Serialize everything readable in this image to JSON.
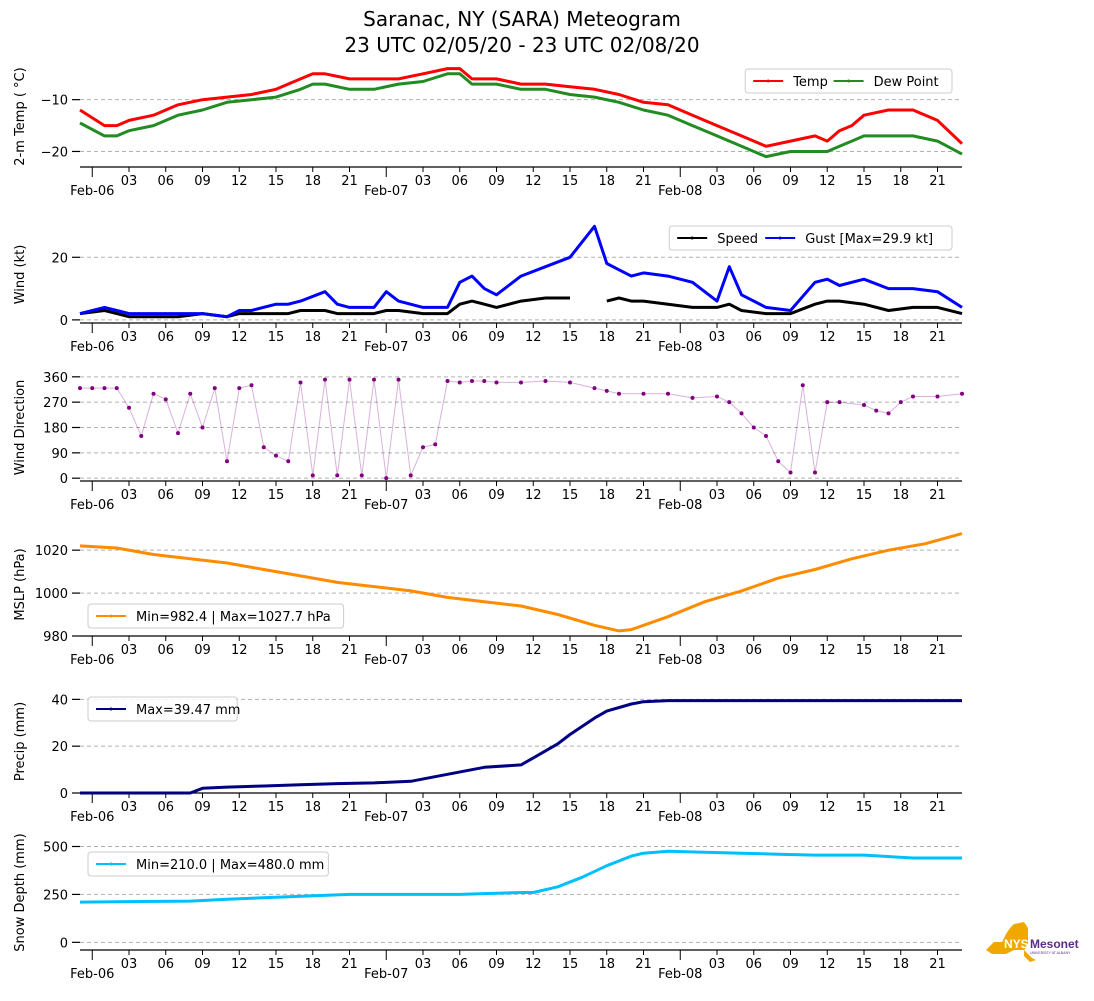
{
  "title": {
    "line1": "Saranac, NY (SARA) Meteogram",
    "line2": "23 UTC 02/05/20 - 23 UTC 02/08/20"
  },
  "logo": {
    "text_main": "NYS",
    "text_brand": "Mesonet",
    "text_sub": "UNIVERSITY AT ALBANY",
    "color_state": "#f0a800",
    "color_brand": "#5b2d86"
  },
  "chart_data": [
    {
      "id": "temp",
      "type": "line",
      "ylabel": "2-m Temp ($^\\circ$C)",
      "ylabel_display": "2-m Temp ( °C)",
      "ylim": [
        -23,
        -3.5
      ],
      "yticks": [
        -10,
        -20
      ],
      "ytick_labels": [
        "−10",
        "−20"
      ],
      "grid": true,
      "legend_placement": "top-right",
      "legend_ncol": 2,
      "x_hours": [
        0,
        2,
        3,
        4,
        6,
        8,
        10,
        12,
        14,
        16,
        18,
        19,
        20,
        22,
        24,
        26,
        28,
        30,
        31,
        32,
        34,
        36,
        38,
        40,
        42,
        44,
        46,
        48,
        50,
        52,
        54,
        56,
        58,
        60,
        61,
        62,
        63,
        64,
        66,
        68,
        70,
        72
      ],
      "series": [
        {
          "name": "Temp",
          "color": "#ff0000",
          "values": [
            -12,
            -15,
            -15,
            -14,
            -13,
            -11,
            -10,
            -9.5,
            -9,
            -8,
            -6,
            -5,
            -5,
            -6,
            -6,
            -6,
            -5,
            -4,
            -4,
            -6,
            -6,
            -7,
            -7,
            -7.5,
            -8,
            -9,
            -10.5,
            -11,
            -13,
            -15,
            -17,
            -19,
            -18,
            -17,
            -18,
            -16,
            -15,
            -13,
            -12,
            -12,
            -14,
            -18.5
          ]
        },
        {
          "name": "Dew Point",
          "color": "#228b22",
          "values": [
            -14.5,
            -17,
            -17,
            -16,
            -15,
            -13,
            -12,
            -10.5,
            -10,
            -9.5,
            -8,
            -7,
            -7,
            -8,
            -8,
            -7,
            -6.5,
            -5,
            -5,
            -7,
            -7,
            -8,
            -8,
            -9,
            -9.5,
            -10.5,
            -12,
            -13,
            -15,
            -17,
            -19,
            -21,
            -20,
            -20,
            -20,
            -19,
            -18,
            -17,
            -17,
            -17,
            -18,
            -20.5
          ]
        }
      ],
      "xtick_labels": [
        "Feb-06",
        "03",
        "06",
        "09",
        "12",
        "15",
        "18",
        "21",
        "Feb-07",
        "03",
        "06",
        "09",
        "12",
        "15",
        "18",
        "21",
        "Feb-08",
        "03",
        "06",
        "09",
        "12",
        "15",
        "18",
        "21"
      ]
    },
    {
      "id": "wind",
      "type": "line",
      "ylabel": "Wind (kt)",
      "ylim": [
        -1,
        30
      ],
      "yticks": [
        0,
        20
      ],
      "ytick_labels": [
        "0",
        "20"
      ],
      "grid": true,
      "legend_placement": "top-right",
      "legend_ncol": 2,
      "x_hours": [
        0,
        2,
        3,
        4,
        6,
        8,
        10,
        12,
        13,
        14,
        16,
        17,
        18,
        20,
        21,
        22,
        24,
        25,
        26,
        28,
        30,
        31,
        32,
        33,
        34,
        36,
        38,
        40,
        42,
        43,
        44,
        45,
        46,
        48,
        50,
        52,
        53,
        54,
        56,
        58,
        60,
        61,
        62,
        64,
        66,
        68,
        70,
        72
      ],
      "series": [
        {
          "name": "Speed",
          "color": "#000000",
          "values": [
            2,
            3,
            2,
            1,
            1,
            1,
            2,
            1,
            2,
            2,
            2,
            2,
            3,
            3,
            2,
            2,
            2,
            3,
            3,
            2,
            2,
            5,
            6,
            5,
            4,
            6,
            7,
            7,
            null,
            6,
            7,
            6,
            6,
            5,
            4,
            4,
            5,
            3,
            2,
            2,
            5,
            6,
            6,
            5,
            3,
            4,
            4,
            2
          ]
        },
        {
          "name": "Gust [Max=29.9 kt]",
          "color": "#0000ff",
          "values": [
            2,
            4,
            3,
            2,
            2,
            2,
            2,
            1,
            3,
            3,
            5,
            5,
            6,
            9,
            5,
            4,
            4,
            9,
            6,
            4,
            4,
            12,
            14,
            10,
            8,
            14,
            17,
            20,
            29.9,
            18,
            16,
            14,
            15,
            14,
            12,
            6,
            17,
            8,
            4,
            3,
            12,
            13,
            11,
            13,
            10,
            10,
            9,
            4
          ]
        }
      ],
      "legend_labels": [
        "Speed",
        "Gust [Max=29.9 kt]"
      ]
    },
    {
      "id": "wdir",
      "type": "scatter",
      "ylabel": "Wind Direction",
      "ylim": [
        -10,
        370
      ],
      "yticks": [
        0,
        90,
        180,
        270,
        360
      ],
      "ytick_labels": [
        "0",
        "90",
        "180",
        "270",
        "360"
      ],
      "grid": true,
      "series": [
        {
          "name": "Wind Direction",
          "color": "#800080",
          "note": "Highly variable (0-360) from ~Feb-06 03 to Feb-07 08; steady 330-350 Feb-07 08-18; ~300 Feb-07 18 to Feb-08 04; variable Feb-08 06-11; ~270 then 230-300 rest",
          "x_hours": [
            0,
            1,
            2,
            3,
            4,
            5,
            6,
            7,
            8,
            9,
            10,
            11,
            12,
            13,
            14,
            15,
            16,
            17,
            18,
            19,
            20,
            21,
            22,
            23,
            24,
            25,
            26,
            27,
            28,
            29,
            30,
            31,
            32,
            33,
            34,
            36,
            38,
            40,
            42,
            43,
            44,
            46,
            48,
            50,
            52,
            53,
            54,
            55,
            56,
            57,
            58,
            59,
            60,
            61,
            62,
            64,
            65,
            66,
            67,
            68,
            70,
            72
          ],
          "values": [
            320,
            320,
            320,
            320,
            250,
            150,
            300,
            280,
            160,
            300,
            180,
            320,
            60,
            320,
            330,
            110,
            80,
            60,
            340,
            10,
            350,
            10,
            350,
            10,
            350,
            0,
            350,
            10,
            110,
            120,
            345,
            340,
            345,
            345,
            340,
            340,
            345,
            340,
            320,
            310,
            300,
            300,
            300,
            285,
            290,
            270,
            230,
            180,
            150,
            60,
            20,
            330,
            20,
            270,
            270,
            260,
            240,
            230,
            270,
            290,
            290,
            300
          ]
        }
      ]
    },
    {
      "id": "mslp",
      "type": "line",
      "ylabel": "MSLP (hPa)",
      "ylim": [
        980,
        1028
      ],
      "yticks": [
        980,
        1000,
        1020
      ],
      "ytick_labels": [
        "980",
        "1000",
        "1020"
      ],
      "grid": true,
      "legend_placement": "lower-left",
      "x_hours": [
        0,
        3,
        6,
        9,
        12,
        15,
        18,
        21,
        24,
        27,
        30,
        33,
        36,
        39,
        42,
        44,
        45,
        48,
        51,
        54,
        57,
        60,
        63,
        66,
        69,
        72
      ],
      "series": [
        {
          "name": "Min=982.4 | Max=1027.7 hPa",
          "color": "#ff8c00",
          "values": [
            1022,
            1021,
            1018,
            1016,
            1014,
            1011,
            1008,
            1005,
            1003,
            1001,
            998,
            996,
            994,
            990,
            985,
            982.4,
            983,
            989,
            996,
            1001,
            1007,
            1011,
            1016,
            1020,
            1023,
            1027.7
          ]
        }
      ]
    },
    {
      "id": "precip",
      "type": "line",
      "ylabel": "Precip (mm)",
      "ylim": [
        0,
        44
      ],
      "yticks": [
        0,
        20,
        40
      ],
      "ytick_labels": [
        "0",
        "20",
        "40"
      ],
      "grid": true,
      "legend_placement": "upper-left",
      "x_hours": [
        0,
        9,
        10,
        12,
        15,
        18,
        21,
        24,
        27,
        30,
        33,
        36,
        37,
        39,
        40,
        42,
        43,
        45,
        46,
        48,
        72
      ],
      "series": [
        {
          "name": "Max=39.47 mm",
          "color": "#000080",
          "values": [
            0,
            0,
            2,
            2.5,
            3,
            3.5,
            4,
            4.3,
            5,
            8,
            11,
            12,
            15,
            21,
            25,
            32,
            35,
            38,
            39,
            39.47,
            39.47
          ]
        }
      ]
    },
    {
      "id": "snow",
      "type": "line",
      "ylabel": "Snow Depth (mm)",
      "ylim": [
        -40,
        560
      ],
      "yticks": [
        0,
        250,
        500
      ],
      "ytick_labels": [
        "0",
        "250",
        "500"
      ],
      "grid": true,
      "legend_placement": "upper-left",
      "x_hours": [
        0,
        9,
        12,
        16,
        22,
        31,
        36,
        37,
        39,
        41,
        43,
        45,
        46,
        48,
        51,
        54,
        57,
        60,
        64,
        68,
        72
      ],
      "series": [
        {
          "name": "Min=210.0 | Max=480.0 mm",
          "color": "#00bfff",
          "values": [
            210,
            215,
            225,
            235,
            250,
            250,
            260,
            260,
            290,
            340,
            400,
            450,
            465,
            475,
            470,
            465,
            460,
            455,
            455,
            440,
            440
          ]
        }
      ]
    }
  ]
}
